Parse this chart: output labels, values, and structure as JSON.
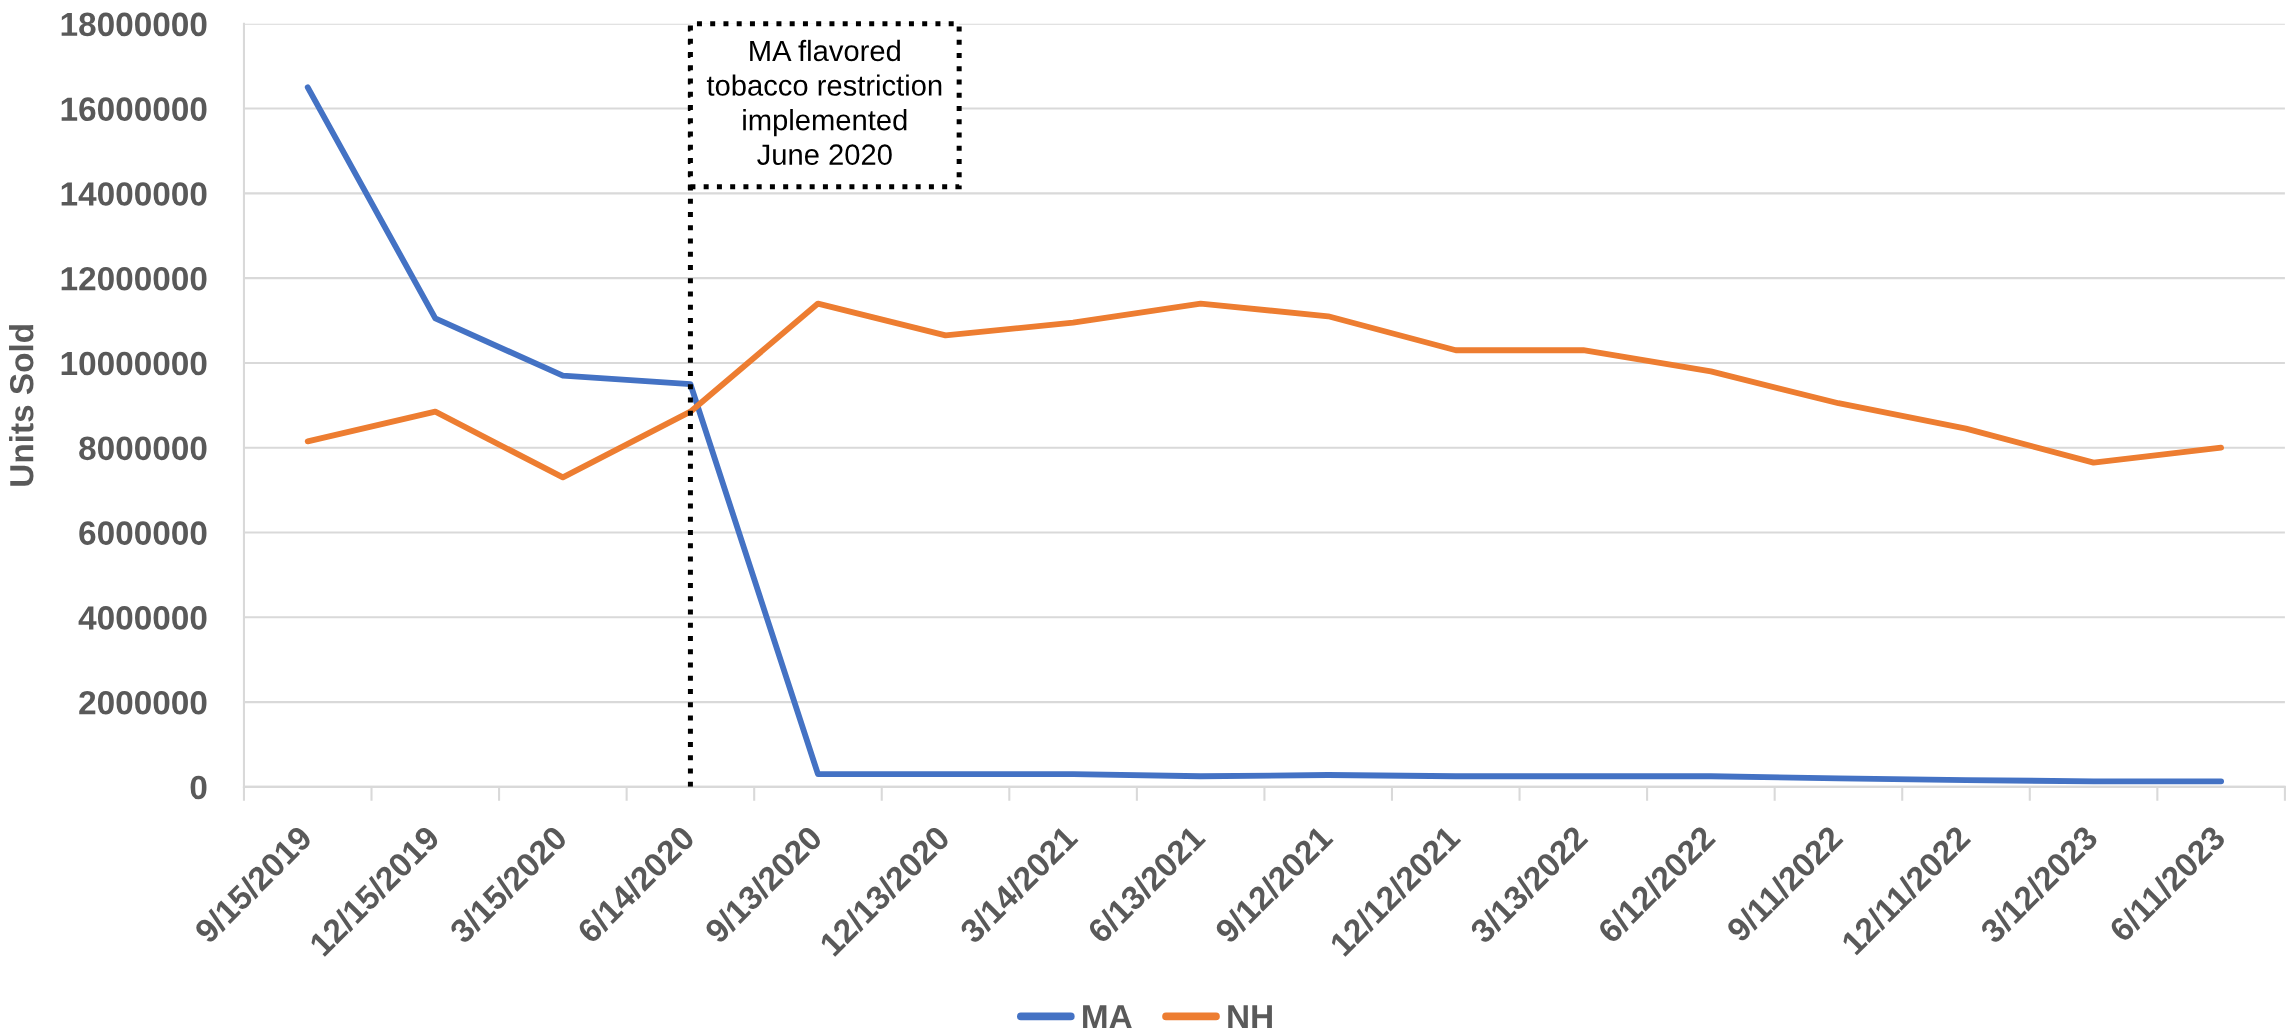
{
  "chart_data": {
    "type": "line",
    "ylabel": "Units Sold",
    "categories": [
      "9/15/2019",
      "12/15/2019",
      "3/15/2020",
      "6/14/2020",
      "9/13/2020",
      "12/13/2020",
      "3/14/2021",
      "6/13/2021",
      "9/12/2021",
      "12/12/2021",
      "3/13/2022",
      "6/12/2022",
      "9/11/2022",
      "12/11/2022",
      "3/12/2023",
      "6/11/2023"
    ],
    "series": [
      {
        "name": "MA",
        "color": "#4472c4",
        "values": [
          16500000,
          11050000,
          9700000,
          9500000,
          300000,
          300000,
          300000,
          250000,
          280000,
          250000,
          250000,
          250000,
          200000,
          160000,
          130000,
          130000
        ]
      },
      {
        "name": "NH",
        "color": "#ed7d31",
        "values": [
          8150000,
          8850000,
          7300000,
          8850000,
          11400000,
          10650000,
          10950000,
          11400000,
          11100000,
          10300000,
          10300000,
          9800000,
          9050000,
          8450000,
          7650000,
          8000000
        ]
      }
    ],
    "ylim": [
      0,
      18000000
    ],
    "yticks": [
      0,
      2000000,
      4000000,
      6000000,
      8000000,
      10000000,
      12000000,
      14000000,
      16000000,
      18000000
    ],
    "grid": "y",
    "legend": "bottom",
    "line_style": "solid",
    "ref_lines": [
      {
        "axis": "x",
        "value": "6/14/2020",
        "label": "MA flavored\ntobacco restriction\nimplemented\nJune 2020",
        "color": "#000000",
        "line_style": "dotted"
      }
    ]
  }
}
